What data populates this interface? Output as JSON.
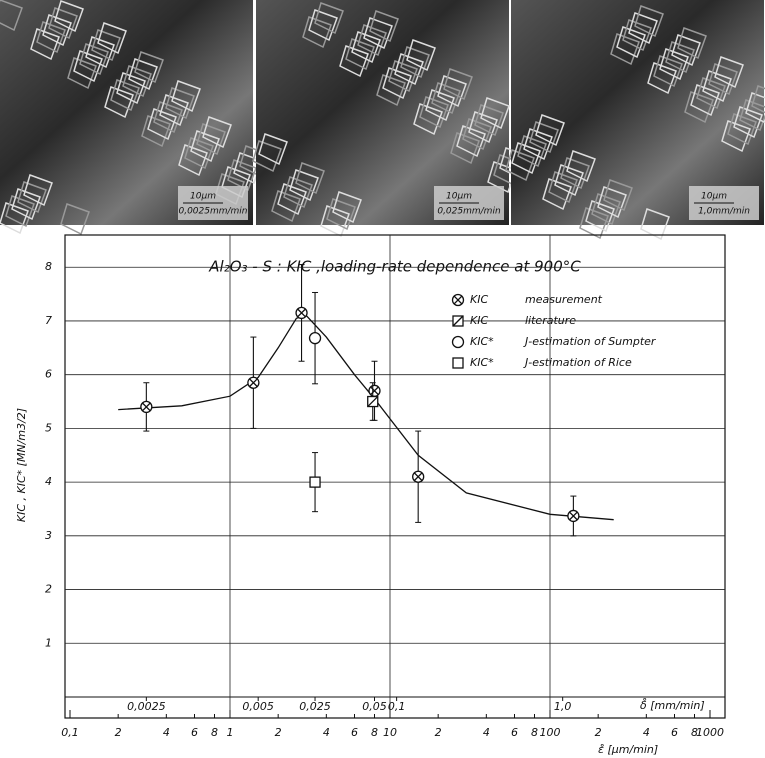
{
  "micrographs": [
    {
      "scale": "10μm",
      "rate": "0,0025mm/min"
    },
    {
      "scale": "10μm",
      "rate": "0,025mm/min"
    },
    {
      "scale": "10μm",
      "rate": "1,0mm/min"
    }
  ],
  "chart_data": {
    "type": "scatter",
    "title": "Al₂O₃ - S : KIC ,loading-rate dependence at 900°C",
    "y_label": "KIC , KIC*   [MN/m3/2]",
    "x_label": "ε̊  [μm/min]",
    "x_log": true,
    "grid": true,
    "xlim": [
      0.1,
      1000
    ],
    "ylim": [
      0,
      8.6
    ],
    "yticks": [
      1,
      2,
      3,
      4,
      5,
      6,
      7,
      8
    ],
    "xticks": [
      {
        "value": 0.1,
        "label": "0,1"
      },
      {
        "value": 0.2,
        "label": "2"
      },
      {
        "value": 0.4,
        "label": "4"
      },
      {
        "value": 0.6,
        "label": "6"
      },
      {
        "value": 0.8,
        "label": "8"
      },
      1,
      {
        "value": 2,
        "label": "2"
      },
      {
        "value": 4,
        "label": "4"
      },
      {
        "value": 6,
        "label": "6"
      },
      {
        "value": 8,
        "label": "8"
      },
      10,
      {
        "value": 20,
        "label": "2"
      },
      {
        "value": 40,
        "label": "4"
      },
      {
        "value": 60,
        "label": "6"
      },
      {
        "value": 80,
        "label": "8"
      },
      100,
      {
        "value": 200,
        "label": "2"
      },
      {
        "value": 400,
        "label": "4"
      },
      {
        "value": 600,
        "label": "6"
      },
      {
        "value": 800,
        "label": "8"
      },
      1000
    ],
    "top_axis": {
      "label": "δ̊  [mm/min]",
      "ticks": [
        {
          "at": 0.3,
          "label": "0,0025"
        },
        {
          "at": 1.5,
          "label": "0,005"
        },
        {
          "at": 3.4,
          "label": "0,025"
        },
        {
          "at": 8,
          "label": "0,05"
        },
        {
          "at": 11,
          "label": "0,1"
        },
        {
          "at": 120,
          "label": "1,0"
        }
      ]
    },
    "series": [
      {
        "name": "measurement",
        "symbol_label": "KIC",
        "marker": "circle-x",
        "color": "#111",
        "x": [
          0.3,
          1.4,
          2.8,
          8,
          15,
          140
        ],
        "values": [
          5.4,
          5.85,
          7.15,
          5.7,
          4.1,
          3.37
        ],
        "errors": [
          0.45,
          0.85,
          0.9,
          0.55,
          0.85,
          0.37
        ]
      },
      {
        "name": "literature",
        "symbol_label": "KIC",
        "marker": "square-slash",
        "color": "#111",
        "x": [
          7.8
        ],
        "values": [
          5.5
        ],
        "errors": [
          0.35
        ]
      },
      {
        "name": "J-estimation of Sumpter",
        "symbol_label": "KIC*",
        "marker": "circle",
        "color": "#111",
        "x": [
          3.4
        ],
        "values": [
          6.68
        ],
        "errors": [
          0.85
        ]
      },
      {
        "name": "J-estimation of Rice",
        "symbol_label": "KIC*",
        "marker": "square",
        "color": "#111",
        "x": [
          3.4
        ],
        "values": [
          4.0
        ],
        "errors": [
          0.55
        ]
      }
    ],
    "fit": {
      "x": [
        0.2,
        0.5,
        1,
        1.5,
        2,
        2.6,
        3,
        4,
        6,
        8,
        15,
        30,
        100,
        250
      ],
      "values": [
        5.35,
        5.42,
        5.6,
        5.95,
        6.5,
        7.05,
        7.1,
        6.7,
        6.0,
        5.55,
        4.5,
        3.8,
        3.4,
        3.3
      ]
    }
  }
}
